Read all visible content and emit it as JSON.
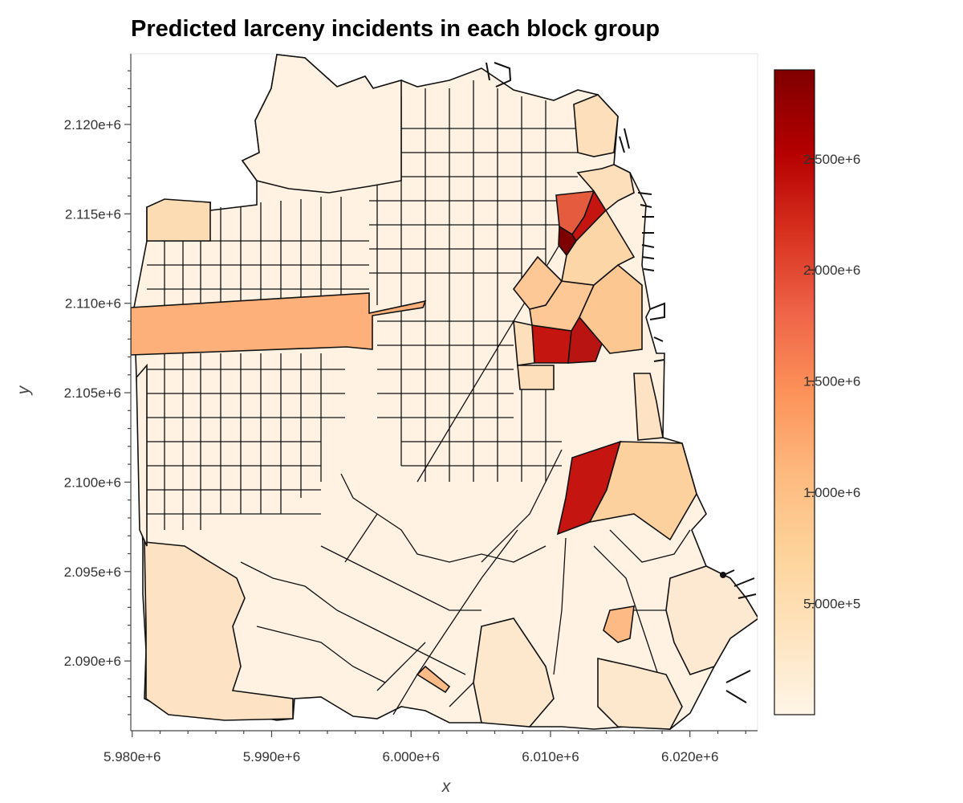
{
  "title": "Predicted larceny incidents in each block group",
  "chart_data": {
    "type": "choropleth",
    "title": "Predicted larceny incidents in each block group",
    "xlabel": "x",
    "ylabel": "y",
    "x_ticks": [
      "5.980e+6",
      "5.990e+6",
      "6.000e+6",
      "6.010e+6",
      "6.020e+6"
    ],
    "x_tick_values": [
      5980000,
      5990000,
      6000000,
      6010000,
      6020000
    ],
    "y_ticks": [
      "2.120e+6",
      "2.115e+6",
      "2.110e+6",
      "2.105e+6",
      "2.100e+6",
      "2.095e+6",
      "2.090e+6"
    ],
    "y_tick_values": [
      2120000,
      2115000,
      2110000,
      2105000,
      2100000,
      2095000,
      2090000
    ],
    "xlim": [
      5979900,
      6024850
    ],
    "ylim": [
      2086100,
      2123950
    ],
    "grid": false,
    "colorbar": {
      "min": 0,
      "max": 2900000,
      "colormap": [
        "#fff5e7",
        "#fee4c0",
        "#fdd39a",
        "#fdba7f",
        "#fc9259",
        "#ef6548",
        "#d7301f",
        "#b50000",
        "#7f0000"
      ],
      "ticks": [
        "5.000e+5",
        "1.000e+6",
        "1.500e+6",
        "2.000e+6",
        "2.500e+6"
      ],
      "tick_values": [
        500000,
        1000000,
        1500000,
        2000000,
        2500000
      ]
    },
    "outline_color": "#111111",
    "base_fill": "#fff2e2"
  }
}
